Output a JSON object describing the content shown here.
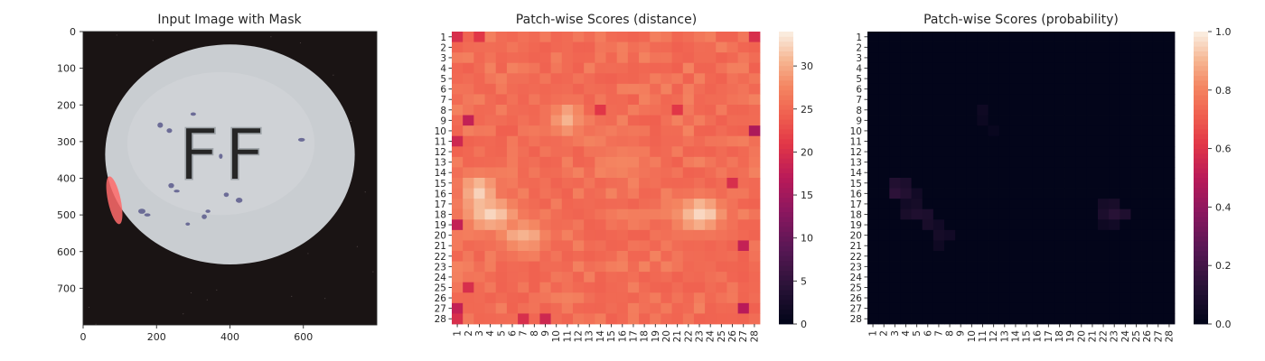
{
  "chart_data": [
    {
      "type": "image",
      "title": "Input Image with Mask",
      "image_size": [
        800,
        800
      ],
      "xlim": [
        0,
        800
      ],
      "ylim": [
        800,
        0
      ],
      "xticks": [
        0,
        200,
        400,
        600
      ],
      "yticks": [
        0,
        100,
        200,
        300,
        400,
        500,
        600,
        700
      ],
      "image_content": {
        "background": "#1a1414",
        "pill_color": "#c9cdd1",
        "pill_center": [
          400,
          335
        ],
        "pill_radii": [
          340,
          300
        ],
        "embossed_text": "FF",
        "speck_color": "#5b5a8c",
        "speck_centers": [
          [
            300,
            225
          ],
          [
            210,
            255
          ],
          [
            235,
            270
          ],
          [
            375,
            340
          ],
          [
            240,
            420
          ],
          [
            255,
            435
          ],
          [
            390,
            445
          ],
          [
            425,
            460
          ],
          [
            340,
            490
          ],
          [
            330,
            505
          ],
          [
            285,
            525
          ],
          [
            160,
            490
          ],
          [
            175,
            500
          ],
          [
            595,
            295
          ]
        ],
        "mask_color": "#ff6a6a",
        "mask_region_center": [
          85,
          460
        ],
        "mask_region_radii": [
          35,
          70
        ]
      }
    },
    {
      "type": "heatmap",
      "title": "Patch-wise Scores (distance)",
      "x_tick_labels": [
        "1",
        "2",
        "3",
        "4",
        "5",
        "6",
        "7",
        "8",
        "9",
        "10",
        "11",
        "12",
        "13",
        "14",
        "15",
        "16",
        "17",
        "18",
        "19",
        "20",
        "21",
        "22",
        "23",
        "24",
        "25",
        "26",
        "27",
        "28"
      ],
      "y_tick_labels": [
        "1",
        "2",
        "3",
        "4",
        "5",
        "6",
        "7",
        "8",
        "9",
        "10",
        "11",
        "12",
        "13",
        "14",
        "15",
        "16",
        "17",
        "18",
        "19",
        "20",
        "21",
        "22",
        "23",
        "24",
        "25",
        "26",
        "27",
        "28"
      ],
      "colormap": "rocket",
      "vmin": 0,
      "vmax": 34,
      "colorbar_ticks": [
        0,
        5,
        10,
        15,
        20,
        25,
        30
      ],
      "baseline_value": 25,
      "hotspots": [
        {
          "row": 16,
          "col": 3,
          "value": 33,
          "spread_rows": 1.8,
          "spread_cols": 1.6
        },
        {
          "row": 18,
          "col": 4,
          "value": 33,
          "spread_rows": 1.6,
          "spread_cols": 2.2
        },
        {
          "row": 20,
          "col": 7,
          "value": 31,
          "spread_rows": 1.4,
          "spread_cols": 2.2
        },
        {
          "row": 18,
          "col": 23,
          "value": 33,
          "spread_rows": 1.6,
          "spread_cols": 2.2
        },
        {
          "row": 9,
          "col": 11,
          "value": 31,
          "spread_rows": 1.6,
          "spread_cols": 1.4
        },
        {
          "row": 13,
          "col": 16,
          "value": 28,
          "spread_rows": 2.0,
          "spread_cols": 2.0
        }
      ],
      "low_cells": [
        {
          "row": 1,
          "col": 1,
          "value": 20
        },
        {
          "row": 1,
          "col": 3,
          "value": 21
        },
        {
          "row": 1,
          "col": 28,
          "value": 20
        },
        {
          "row": 9,
          "col": 2,
          "value": 18
        },
        {
          "row": 10,
          "col": 28,
          "value": 16
        },
        {
          "row": 11,
          "col": 1,
          "value": 19
        },
        {
          "row": 19,
          "col": 1,
          "value": 18
        },
        {
          "row": 21,
          "col": 27,
          "value": 18
        },
        {
          "row": 27,
          "col": 1,
          "value": 18
        },
        {
          "row": 27,
          "col": 27,
          "value": 17
        },
        {
          "row": 28,
          "col": 1,
          "value": 20
        },
        {
          "row": 28,
          "col": 7,
          "value": 20
        },
        {
          "row": 28,
          "col": 9,
          "value": 19
        },
        {
          "row": 25,
          "col": 2,
          "value": 20
        },
        {
          "row": 8,
          "col": 14,
          "value": 21
        },
        {
          "row": 8,
          "col": 21,
          "value": 21
        },
        {
          "row": 15,
          "col": 26,
          "value": 20
        }
      ]
    },
    {
      "type": "heatmap",
      "title": "Patch-wise Scores (probability)",
      "x_tick_labels": [
        "1",
        "2",
        "3",
        "4",
        "5",
        "6",
        "7",
        "8",
        "9",
        "10",
        "11",
        "12",
        "13",
        "14",
        "15",
        "16",
        "17",
        "18",
        "19",
        "20",
        "21",
        "22",
        "23",
        "24",
        "25",
        "26",
        "27",
        "28"
      ],
      "y_tick_labels": [
        "1",
        "2",
        "3",
        "4",
        "5",
        "6",
        "7",
        "8",
        "9",
        "10",
        "11",
        "12",
        "13",
        "14",
        "15",
        "16",
        "17",
        "18",
        "19",
        "20",
        "21",
        "22",
        "23",
        "24",
        "25",
        "26",
        "27",
        "28"
      ],
      "colormap": "rocket",
      "vmin": 0,
      "vmax": 1,
      "colorbar_ticks": [
        0.0,
        0.2,
        0.4,
        0.6,
        0.8,
        1.0
      ],
      "colorbar_tick_labels": [
        "0.0",
        "0.2",
        "0.4",
        "0.6",
        "0.8",
        "1.0"
      ],
      "baseline_value": 0.0,
      "cells": [
        {
          "row": 15,
          "col": 3,
          "value": 0.1
        },
        {
          "row": 15,
          "col": 4,
          "value": 0.08
        },
        {
          "row": 16,
          "col": 3,
          "value": 0.13
        },
        {
          "row": 16,
          "col": 4,
          "value": 0.1
        },
        {
          "row": 16,
          "col": 5,
          "value": 0.05
        },
        {
          "row": 17,
          "col": 4,
          "value": 0.05
        },
        {
          "row": 17,
          "col": 5,
          "value": 0.06
        },
        {
          "row": 18,
          "col": 4,
          "value": 0.07
        },
        {
          "row": 18,
          "col": 5,
          "value": 0.09
        },
        {
          "row": 18,
          "col": 6,
          "value": 0.08
        },
        {
          "row": 19,
          "col": 6,
          "value": 0.07
        },
        {
          "row": 19,
          "col": 7,
          "value": 0.05
        },
        {
          "row": 20,
          "col": 7,
          "value": 0.06
        },
        {
          "row": 20,
          "col": 8,
          "value": 0.05
        },
        {
          "row": 21,
          "col": 7,
          "value": 0.04
        },
        {
          "row": 17,
          "col": 22,
          "value": 0.06
        },
        {
          "row": 17,
          "col": 23,
          "value": 0.07
        },
        {
          "row": 18,
          "col": 22,
          "value": 0.08
        },
        {
          "row": 18,
          "col": 23,
          "value": 0.12
        },
        {
          "row": 18,
          "col": 24,
          "value": 0.09
        },
        {
          "row": 19,
          "col": 22,
          "value": 0.04
        },
        {
          "row": 19,
          "col": 23,
          "value": 0.05
        },
        {
          "row": 8,
          "col": 11,
          "value": 0.04
        },
        {
          "row": 9,
          "col": 11,
          "value": 0.03
        },
        {
          "row": 10,
          "col": 12,
          "value": 0.02
        }
      ]
    }
  ]
}
